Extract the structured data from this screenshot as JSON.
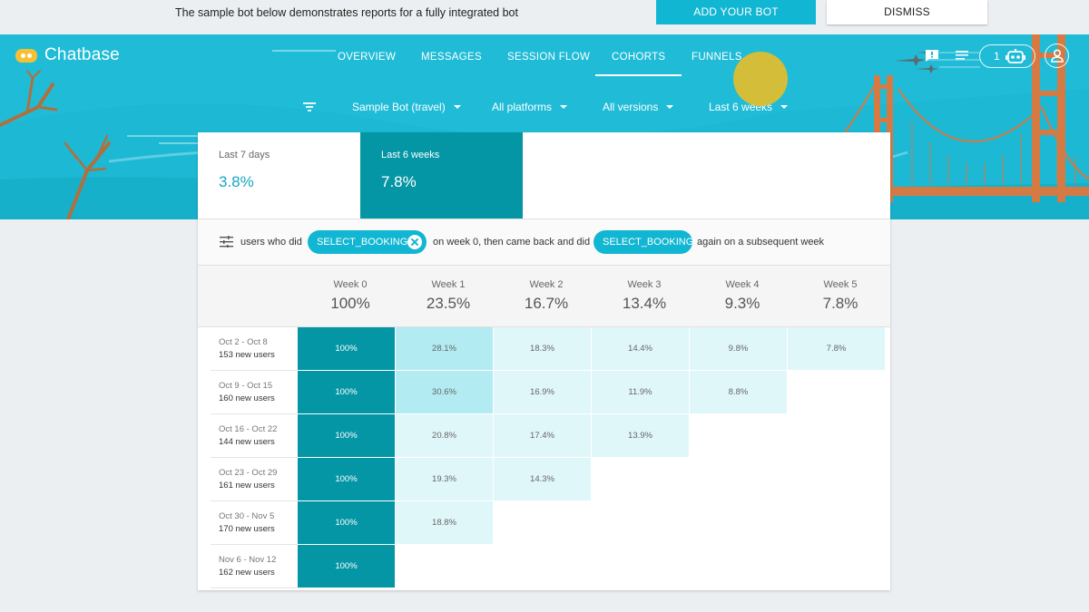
{
  "banner": {
    "text": "The sample bot below demonstrates reports for a fully integrated bot",
    "add_label": "ADD YOUR BOT",
    "dismiss_label": "DISMISS"
  },
  "header": {
    "brand": "Chatbase",
    "nav": [
      "OVERVIEW",
      "MESSAGES",
      "SESSION FLOW",
      "COHORTS",
      "FUNNELS"
    ],
    "active_nav": "COHORTS",
    "bot_count": "1"
  },
  "filters": {
    "bot": "Sample Bot (travel)",
    "platform": "All platforms",
    "version": "All versions",
    "range": "Last 6 weeks"
  },
  "stats": [
    {
      "label": "Last 7 days",
      "value": "3.8%"
    },
    {
      "label": "Last 6 weeks",
      "value": "7.8%"
    }
  ],
  "query": {
    "prefix": "users who did",
    "first_intent": "SELECT_BOOKING",
    "middle": "on week 0, then came back and did",
    "second_intent": "SELECT_BOOKING",
    "suffix": "again on a subsequent week"
  },
  "weeks": [
    {
      "label": "Week 0",
      "value": "100%"
    },
    {
      "label": "Week 1",
      "value": "23.5%"
    },
    {
      "label": "Week 2",
      "value": "16.7%"
    },
    {
      "label": "Week 3",
      "value": "13.4%"
    },
    {
      "label": "Week 4",
      "value": "9.3%"
    },
    {
      "label": "Week 5",
      "value": "7.8%"
    }
  ],
  "cohorts": [
    {
      "range": "Oct 2 - Oct 8",
      "users": "153 new users",
      "cells": [
        "100%",
        "28.1%",
        "18.3%",
        "14.4%",
        "9.8%",
        "7.8%"
      ]
    },
    {
      "range": "Oct 9 - Oct 15",
      "users": "160 new users",
      "cells": [
        "100%",
        "30.6%",
        "16.9%",
        "11.9%",
        "8.8%"
      ]
    },
    {
      "range": "Oct 16 - Oct 22",
      "users": "144 new users",
      "cells": [
        "100%",
        "20.8%",
        "17.4%",
        "13.9%"
      ]
    },
    {
      "range": "Oct 23 - Oct 29",
      "users": "161 new users",
      "cells": [
        "100%",
        "19.3%",
        "14.3%"
      ]
    },
    {
      "range": "Oct 30 - Nov 5",
      "users": "170 new users",
      "cells": [
        "100%",
        "18.8%"
      ]
    },
    {
      "range": "Nov 6 - Nov 12",
      "users": "162 new users",
      "cells": [
        "100%"
      ]
    }
  ],
  "colors": {
    "brand": "#1cb8d4",
    "week0": "#0596a5",
    "cell_high": "#b2ebf2",
    "cell_low": "#e0f7fa",
    "bridge": "#d67a43"
  }
}
